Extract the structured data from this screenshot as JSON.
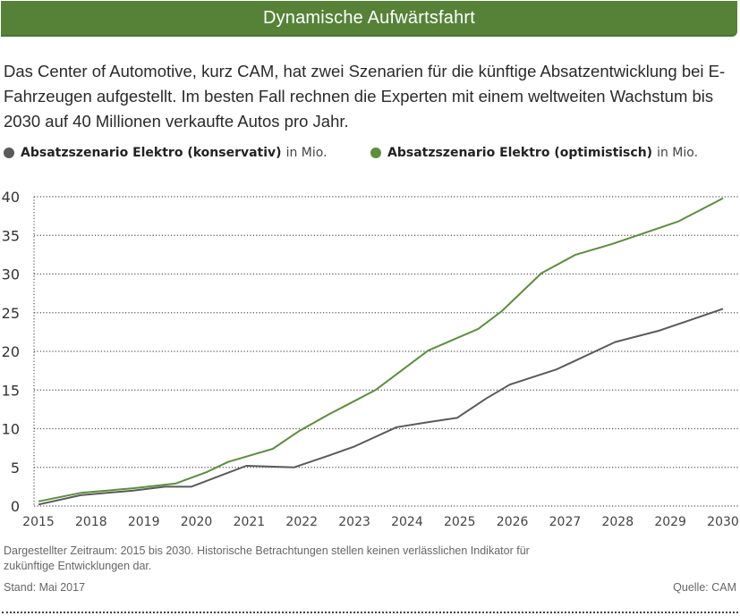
{
  "title": "Dynamische Aufwärtsfahrt",
  "intro": "Das Center of Automotive, kurz CAM, hat zwei Szenarien für die künftige Absatzentwicklung bei E-Fahrzeugen aufgestellt. Im besten Fall rechnen die Experten mit einem weltweiten Wachstum bis 2030 auf 40 Millionen verkaufte Autos pro Jahr.",
  "legend": [
    {
      "label": "Absatzszenario Elektro (konservativ)",
      "unit": "in Mio.",
      "color": "#5a5a5a"
    },
    {
      "label": "Absatzszenario Elektro (optimistisch)",
      "unit": "in Mio.",
      "color": "#5a8f3c"
    }
  ],
  "footnote": "Dargestellter Zeitraum: 2015 bis 2030. Historische Betrachtungen stellen keinen verlässlichen Indikator für zukünftige Entwicklungen dar.",
  "stand": "Stand: Mai 2017",
  "source": "Quelle: CAM",
  "chart_data": {
    "type": "line",
    "title": "Dynamische Aufwärtsfahrt",
    "xlabel": "",
    "ylabel": "in Mio.",
    "categories": [
      "2015",
      "2018",
      "2019",
      "2020",
      "2021",
      "2022",
      "2023",
      "2024",
      "2025",
      "2026",
      "2027",
      "2028",
      "2029",
      "2030"
    ],
    "x_range": [
      0,
      13
    ],
    "ylim": [
      0,
      40
    ],
    "yticks": [
      0,
      5,
      10,
      15,
      20,
      25,
      30,
      35,
      40
    ],
    "grid": true,
    "legend_position": "top",
    "series": [
      {
        "name": "Absatzszenario Elektro (konservativ)",
        "color": "#5a5a5a",
        "points": [
          [
            0,
            0.2
          ],
          [
            0.8,
            1.4
          ],
          [
            1.8,
            2.0
          ],
          [
            2.4,
            2.5
          ],
          [
            2.9,
            2.5
          ],
          [
            3.95,
            5.2
          ],
          [
            4.85,
            5.0
          ],
          [
            5.5,
            6.5
          ],
          [
            6.0,
            7.7
          ],
          [
            6.8,
            10.2
          ],
          [
            7.45,
            10.9
          ],
          [
            7.95,
            11.4
          ],
          [
            8.5,
            13.9
          ],
          [
            8.95,
            15.7
          ],
          [
            9.85,
            17.7
          ],
          [
            10.95,
            21.2
          ],
          [
            11.8,
            22.7
          ],
          [
            13.0,
            25.5
          ]
        ]
      },
      {
        "name": "Absatzszenario Elektro (optimistisch)",
        "color": "#5a8f3c",
        "points": [
          [
            0,
            0.6
          ],
          [
            0.8,
            1.7
          ],
          [
            1.8,
            2.3
          ],
          [
            2.6,
            2.9
          ],
          [
            3.2,
            4.4
          ],
          [
            3.6,
            5.7
          ],
          [
            4.45,
            7.4
          ],
          [
            4.95,
            9.7
          ],
          [
            5.5,
            11.8
          ],
          [
            6.4,
            15.0
          ],
          [
            7.4,
            20.1
          ],
          [
            8.35,
            22.9
          ],
          [
            8.8,
            25.2
          ],
          [
            9.55,
            30.1
          ],
          [
            10.2,
            32.5
          ],
          [
            10.9,
            33.9
          ],
          [
            12.15,
            36.8
          ],
          [
            13.0,
            39.8
          ]
        ]
      }
    ]
  }
}
